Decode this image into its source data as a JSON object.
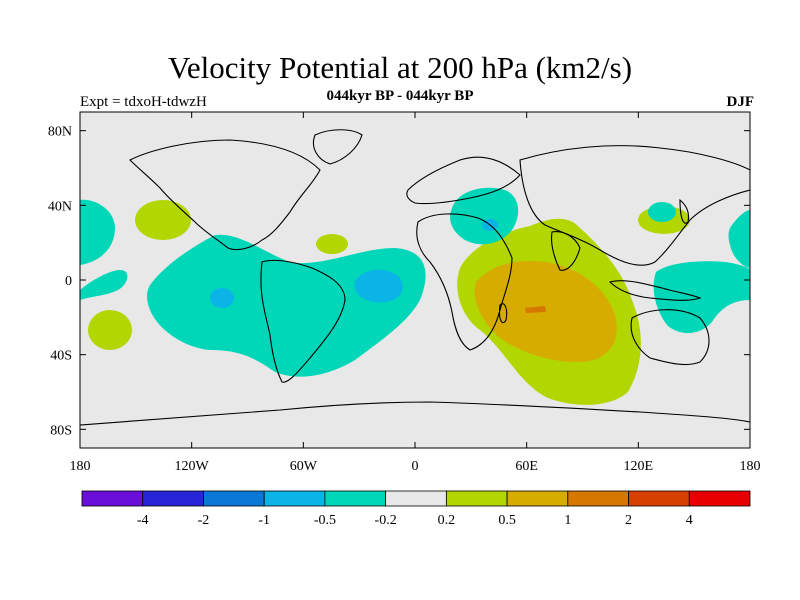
{
  "header": {
    "title": "Velocity Potential at 200 hPa (km2/s)",
    "subtitle": "044kyr BP - 044kyr BP",
    "experiment": "Expt = tdxoH-tdwzH",
    "season": "DJF"
  },
  "map": {
    "lon_ticks": [
      "180",
      "120W",
      "60W",
      "0",
      "60E",
      "120E",
      "180"
    ],
    "lat_ticks": [
      "80N",
      "40N",
      "0",
      "40S",
      "80S"
    ],
    "lon_values": [
      -180,
      -120,
      -60,
      0,
      60,
      120,
      180
    ],
    "lat_values": [
      80,
      40,
      0,
      -40,
      -80
    ],
    "lon_range": [
      -180,
      180
    ],
    "lat_range": [
      -90,
      90
    ]
  },
  "colorbar": {
    "labels": [
      "-4",
      "-2",
      "-1",
      "-0.5",
      "-0.2",
      "0.2",
      "0.5",
      "1",
      "2",
      "4"
    ],
    "colors": [
      "#6a0fd9",
      "#2626d6",
      "#0a78d6",
      "#0bb4e6",
      "#00d6b8",
      "#e8e8e8",
      "#b2d600",
      "#d6ac00",
      "#d67800",
      "#d64000",
      "#e60000"
    ]
  }
}
